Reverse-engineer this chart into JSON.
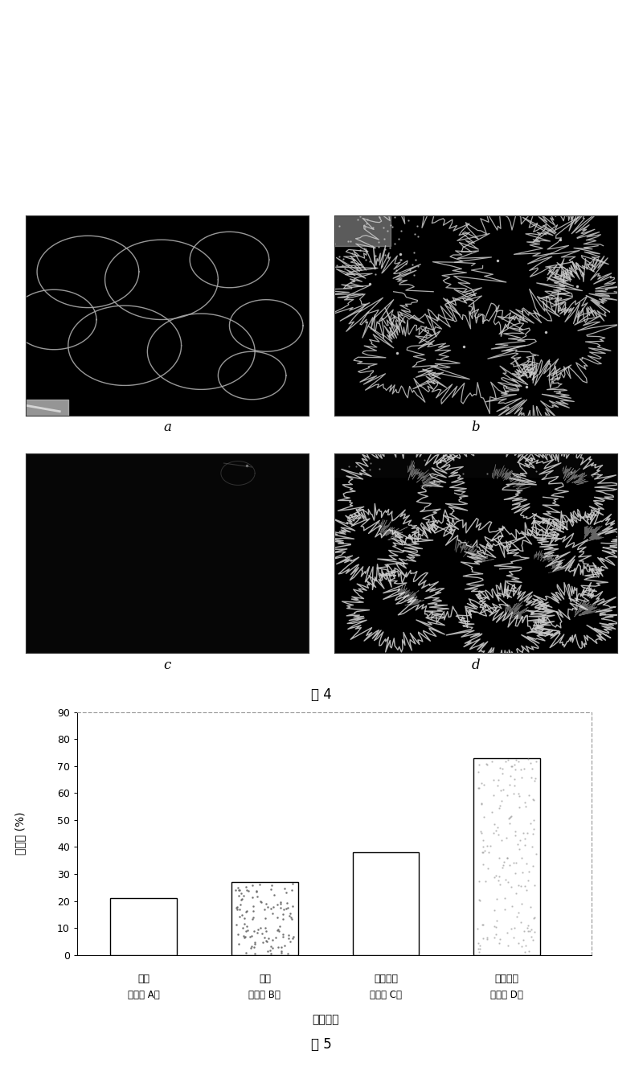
{
  "fig4_label": "图 4",
  "fig5_label": "图 5",
  "image_labels": [
    "a",
    "b",
    "c",
    "d"
  ],
  "bar_values": [
    21,
    27,
    38,
    73
  ],
  "bar_colors": [
    "#ffffff",
    "#ffffff",
    "#ffffff",
    "#ffffff"
  ],
  "bar_edgecolors": [
    "#000000",
    "#000000",
    "#000000",
    "#000000"
  ],
  "ylabel": "包埋率 (%)",
  "xlabel": "载药方法",
  "ylim": [
    0,
    90
  ],
  "yticks": [
    0,
    10,
    20,
    30,
    40,
    50,
    60,
    70,
    80,
    90
  ],
  "ytick_labels": [
    "0",
    "10",
    "20",
    "30",
    "40",
    "50",
    "60",
    "70",
    "80",
    "90"
  ],
  "background_color": "#ffffff",
  "x_labels_line1": [
    "吸附",
    "吸附",
    "直接包埋",
    "直接包埋"
  ],
  "x_labels_line2": [
    "（方法 A）",
    "（方法 B）",
    "（方法 C）",
    "（方法 D）"
  ]
}
